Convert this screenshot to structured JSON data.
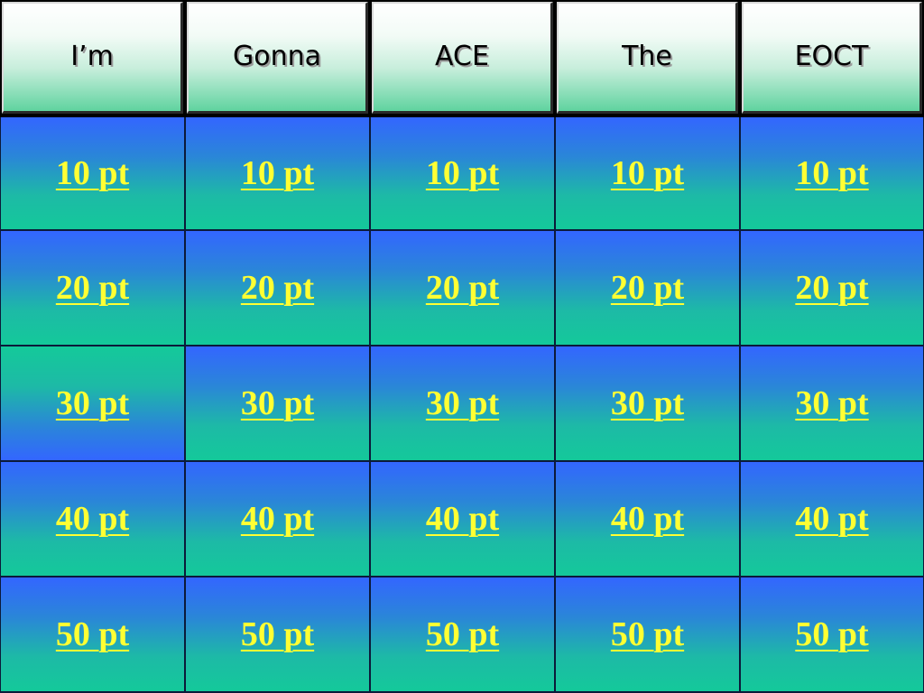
{
  "categories": [
    "I’m",
    "Gonna",
    "ACE",
    "The",
    "EOCT"
  ],
  "rows": [
    [
      "10 pt",
      "10 pt",
      "10 pt",
      "10 pt",
      "10 pt"
    ],
    [
      "20 pt",
      "20 pt",
      "20 pt",
      "20 pt",
      "20 pt"
    ],
    [
      "30 pt",
      "30 pt",
      "30 pt",
      "30 pt",
      "30 pt"
    ],
    [
      "40 pt",
      "40 pt",
      "40 pt",
      "40 pt",
      "40 pt"
    ],
    [
      "50 pt",
      "50 pt",
      "50 pt",
      "50 pt",
      "50 pt"
    ]
  ],
  "colors": {
    "tile_top": "#3366ff",
    "tile_bottom": "#14c99a",
    "link_text": "#ffff33",
    "header_top": "#ffffff",
    "header_bottom": "#5fd39f"
  }
}
